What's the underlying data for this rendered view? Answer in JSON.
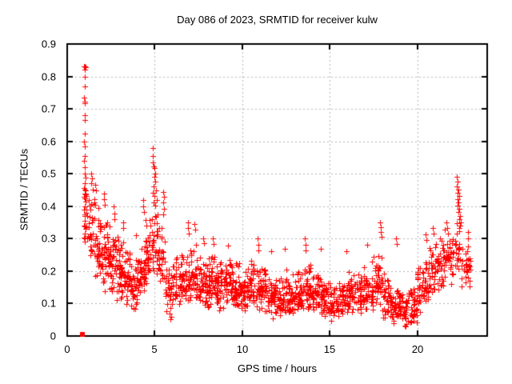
{
  "chart_data": {
    "type": "scatter",
    "title": "Day 086 of 2023, SRMTID for receiver kulw",
    "xlabel": "GPS time / hours",
    "ylabel": "SRMTID / TECUs",
    "xlim": [
      0,
      24
    ],
    "ylim": [
      0,
      0.9
    ],
    "xticks": [
      0,
      5,
      10,
      15,
      20
    ],
    "xtick_labels": [
      "0",
      "5",
      "10",
      "15",
      "20"
    ],
    "yticks": [
      0,
      0.1,
      0.2,
      0.3,
      0.4,
      0.5,
      0.6,
      0.7,
      0.8,
      0.9
    ],
    "ytick_labels": [
      "0",
      "0.1",
      "0.2",
      "0.3",
      "0.4",
      "0.5",
      "0.6",
      "0.7",
      "0.8",
      "0.9"
    ],
    "grid": true,
    "grid_color": "#b4b4b4",
    "border_color": "#000000",
    "background_color": "#ffffff",
    "marker": "plus",
    "marker_color": "#ff0000",
    "marker_size": 7,
    "seed": 42,
    "special_points": [
      {
        "x": 0.88,
        "y": 0.005,
        "marker": "filled-square"
      }
    ],
    "outlier_points": [
      [
        0.97,
        0.83
      ],
      [
        1.0,
        0.832
      ],
      [
        1.03,
        0.828
      ],
      [
        1.0,
        0.822
      ],
      [
        0.99,
        0.8
      ],
      [
        1.01,
        0.77
      ],
      [
        0.98,
        0.735
      ],
      [
        1.0,
        0.722
      ],
      [
        1.02,
        0.718
      ],
      [
        0.99,
        0.68
      ],
      [
        1.01,
        0.665
      ],
      [
        1.0,
        0.625
      ],
      [
        0.98,
        0.6
      ],
      [
        1.02,
        0.585
      ],
      [
        1.0,
        0.555
      ],
      [
        0.97,
        0.54
      ],
      [
        1.01,
        0.52
      ],
      [
        0.99,
        0.5
      ],
      [
        1.03,
        0.487
      ],
      [
        1.0,
        0.47
      ],
      [
        0.98,
        0.455
      ],
      [
        1.02,
        0.452
      ],
      [
        1.05,
        0.448
      ],
      [
        1.0,
        0.44
      ],
      [
        0.99,
        0.425
      ],
      [
        1.04,
        0.415
      ],
      [
        1.01,
        0.4
      ],
      [
        0.97,
        0.39
      ],
      [
        1.0,
        0.37
      ],
      [
        1.02,
        0.355
      ],
      [
        0.98,
        0.34
      ],
      [
        1.03,
        0.33
      ],
      [
        1.0,
        0.315
      ],
      [
        0.99,
        0.3
      ],
      [
        1.01,
        0.29
      ],
      [
        1.38,
        0.5
      ],
      [
        1.41,
        0.486
      ],
      [
        1.39,
        0.47
      ],
      [
        1.44,
        0.452
      ],
      [
        1.62,
        0.465
      ],
      [
        1.65,
        0.448
      ],
      [
        2.08,
        0.44
      ],
      [
        2.11,
        0.422
      ],
      [
        2.14,
        0.405
      ],
      [
        2.65,
        0.4
      ],
      [
        2.68,
        0.378
      ],
      [
        2.71,
        0.36
      ],
      [
        3.18,
        0.35
      ],
      [
        3.21,
        0.333
      ],
      [
        3.95,
        0.31
      ],
      [
        4.33,
        0.42
      ],
      [
        4.36,
        0.4
      ],
      [
        4.39,
        0.382
      ],
      [
        4.88,
        0.58
      ],
      [
        4.91,
        0.556
      ],
      [
        4.87,
        0.535
      ],
      [
        4.94,
        0.522
      ],
      [
        5.0,
        0.518
      ],
      [
        5.04,
        0.5
      ],
      [
        4.97,
        0.49
      ],
      [
        5.02,
        0.476
      ],
      [
        4.92,
        0.462
      ],
      [
        5.07,
        0.45
      ],
      [
        4.9,
        0.441
      ],
      [
        5.0,
        0.431
      ],
      [
        5.1,
        0.42
      ],
      [
        4.95,
        0.411
      ],
      [
        5.05,
        0.401
      ],
      [
        5.48,
        0.445
      ],
      [
        5.51,
        0.43
      ],
      [
        5.47,
        0.412
      ],
      [
        5.54,
        0.392
      ],
      [
        5.5,
        0.376
      ],
      [
        5.85,
        0.07
      ],
      [
        5.9,
        0.052
      ],
      [
        5.95,
        0.06
      ],
      [
        6.88,
        0.35
      ],
      [
        6.91,
        0.332
      ],
      [
        6.94,
        0.315
      ],
      [
        7.28,
        0.345
      ],
      [
        7.31,
        0.328
      ],
      [
        7.78,
        0.3
      ],
      [
        7.81,
        0.285
      ],
      [
        8.32,
        0.3
      ],
      [
        8.35,
        0.283
      ],
      [
        9.18,
        0.278
      ],
      [
        10.88,
        0.3
      ],
      [
        10.91,
        0.282
      ],
      [
        10.94,
        0.265
      ],
      [
        11.65,
        0.262
      ],
      [
        12.42,
        0.27
      ],
      [
        13.58,
        0.3
      ],
      [
        13.61,
        0.282
      ],
      [
        13.64,
        0.265
      ],
      [
        14.48,
        0.268
      ],
      [
        15.95,
        0.262
      ],
      [
        17.12,
        0.28
      ],
      [
        17.88,
        0.35
      ],
      [
        17.91,
        0.335
      ],
      [
        17.94,
        0.32
      ],
      [
        17.97,
        0.305
      ],
      [
        18.78,
        0.3
      ],
      [
        18.82,
        0.283
      ],
      [
        20.48,
        0.312
      ],
      [
        20.52,
        0.295
      ],
      [
        20.88,
        0.332
      ],
      [
        20.92,
        0.315
      ],
      [
        21.28,
        0.3
      ],
      [
        21.68,
        0.35
      ],
      [
        21.72,
        0.333
      ],
      [
        21.76,
        0.315
      ],
      [
        22.28,
        0.49
      ],
      [
        22.31,
        0.475
      ],
      [
        22.27,
        0.462
      ],
      [
        22.34,
        0.452
      ],
      [
        22.3,
        0.441
      ],
      [
        22.38,
        0.432
      ],
      [
        22.33,
        0.421
      ],
      [
        22.37,
        0.411
      ],
      [
        22.3,
        0.401
      ],
      [
        22.41,
        0.391
      ],
      [
        22.35,
        0.381
      ],
      [
        22.44,
        0.371
      ],
      [
        22.4,
        0.36
      ],
      [
        22.48,
        0.35
      ],
      [
        22.44,
        0.341
      ],
      [
        22.88,
        0.32
      ],
      [
        22.92,
        0.302
      ]
    ],
    "density_bins": [
      [
        0.95,
        1.2,
        12,
        0.28,
        0.36,
        0.5
      ],
      [
        1.2,
        1.6,
        30,
        0.2,
        0.32,
        0.47
      ],
      [
        1.6,
        2.0,
        40,
        0.15,
        0.26,
        0.42
      ],
      [
        2.0,
        2.4,
        40,
        0.13,
        0.22,
        0.38
      ],
      [
        2.4,
        2.8,
        40,
        0.12,
        0.2,
        0.35
      ],
      [
        2.8,
        3.2,
        38,
        0.11,
        0.18,
        0.32
      ],
      [
        3.2,
        3.6,
        36,
        0.09,
        0.16,
        0.28
      ],
      [
        3.6,
        4.0,
        34,
        0.07,
        0.14,
        0.26
      ],
      [
        4.0,
        4.4,
        36,
        0.1,
        0.18,
        0.3
      ],
      [
        4.4,
        4.8,
        38,
        0.13,
        0.22,
        0.38
      ],
      [
        4.8,
        5.2,
        30,
        0.17,
        0.27,
        0.4
      ],
      [
        5.2,
        5.6,
        28,
        0.14,
        0.23,
        0.36
      ],
      [
        5.6,
        6.0,
        28,
        0.06,
        0.14,
        0.24
      ],
      [
        6.0,
        6.5,
        38,
        0.08,
        0.15,
        0.25
      ],
      [
        6.5,
        7.0,
        42,
        0.09,
        0.16,
        0.28
      ],
      [
        7.0,
        7.5,
        42,
        0.1,
        0.17,
        0.3
      ],
      [
        7.5,
        8.0,
        44,
        0.08,
        0.15,
        0.27
      ],
      [
        8.0,
        8.5,
        44,
        0.08,
        0.14,
        0.26
      ],
      [
        8.5,
        9.0,
        42,
        0.07,
        0.13,
        0.24
      ],
      [
        9.0,
        9.5,
        42,
        0.08,
        0.14,
        0.26
      ],
      [
        9.5,
        10.0,
        42,
        0.07,
        0.13,
        0.24
      ],
      [
        10.0,
        10.5,
        42,
        0.07,
        0.12,
        0.22
      ],
      [
        10.5,
        11.0,
        42,
        0.08,
        0.14,
        0.25
      ],
      [
        11.0,
        11.5,
        42,
        0.06,
        0.12,
        0.22
      ],
      [
        11.5,
        12.0,
        42,
        0.05,
        0.11,
        0.2
      ],
      [
        12.0,
        12.5,
        42,
        0.05,
        0.1,
        0.19
      ],
      [
        12.5,
        13.0,
        42,
        0.06,
        0.11,
        0.21
      ],
      [
        13.0,
        13.5,
        42,
        0.06,
        0.12,
        0.22
      ],
      [
        13.5,
        14.0,
        42,
        0.07,
        0.13,
        0.24
      ],
      [
        14.0,
        14.5,
        42,
        0.06,
        0.12,
        0.22
      ],
      [
        14.5,
        15.0,
        42,
        0.05,
        0.1,
        0.18
      ],
      [
        15.0,
        15.5,
        42,
        0.04,
        0.09,
        0.16
      ],
      [
        15.5,
        16.0,
        42,
        0.05,
        0.11,
        0.19
      ],
      [
        16.0,
        16.5,
        42,
        0.06,
        0.12,
        0.21
      ],
      [
        16.5,
        17.0,
        40,
        0.06,
        0.12,
        0.22
      ],
      [
        17.0,
        17.5,
        40,
        0.07,
        0.13,
        0.24
      ],
      [
        17.5,
        18.0,
        38,
        0.08,
        0.15,
        0.27
      ],
      [
        18.0,
        18.5,
        40,
        0.05,
        0.11,
        0.22
      ],
      [
        18.5,
        19.0,
        42,
        0.03,
        0.08,
        0.16
      ],
      [
        19.0,
        19.5,
        42,
        0.02,
        0.07,
        0.14
      ],
      [
        19.5,
        20.0,
        40,
        0.03,
        0.08,
        0.15
      ],
      [
        20.0,
        20.5,
        38,
        0.07,
        0.13,
        0.24
      ],
      [
        20.5,
        21.0,
        38,
        0.1,
        0.18,
        0.3
      ],
      [
        21.0,
        21.5,
        36,
        0.13,
        0.21,
        0.32
      ],
      [
        21.5,
        22.0,
        34,
        0.15,
        0.24,
        0.34
      ],
      [
        22.0,
        22.5,
        30,
        0.17,
        0.26,
        0.36
      ],
      [
        22.5,
        23.05,
        30,
        0.14,
        0.22,
        0.32
      ]
    ]
  }
}
